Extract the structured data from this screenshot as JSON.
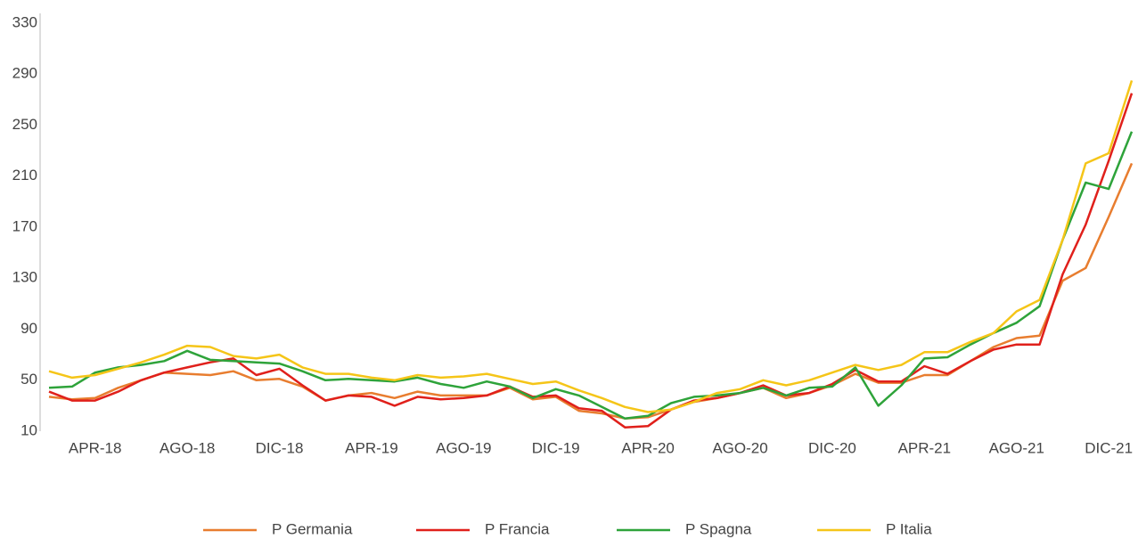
{
  "chart_data": {
    "type": "line",
    "categories": [
      null,
      null,
      "APR-18",
      null,
      null,
      null,
      "AGO-18",
      null,
      null,
      null,
      "DIC-18",
      null,
      null,
      null,
      "APR-19",
      null,
      null,
      null,
      "AGO-19",
      null,
      null,
      null,
      "DIC-19",
      null,
      null,
      null,
      "APR-20",
      null,
      null,
      null,
      "AGO-20",
      null,
      null,
      null,
      "DIC-20",
      null,
      null,
      null,
      "APR-21",
      null,
      null,
      null,
      "AGO-21",
      null,
      null,
      null,
      "DIC-21",
      null
    ],
    "series": [
      {
        "name": "P Germania",
        "color": "#e87d2f",
        "values": [
          37,
          35,
          36,
          44,
          50,
          56,
          55,
          54,
          57,
          50,
          51,
          45,
          34,
          38,
          40,
          36,
          41,
          38,
          38,
          38,
          44,
          35,
          37,
          26,
          24,
          20,
          21,
          27,
          33,
          36,
          40,
          44,
          36,
          40,
          46,
          55,
          48,
          48,
          54,
          54,
          65,
          76,
          83,
          85,
          128,
          138,
          178,
          220
        ]
      },
      {
        "name": "P Francia",
        "color": "#e0201b",
        "values": [
          41,
          34,
          34,
          41,
          50,
          56,
          60,
          64,
          67,
          54,
          59,
          46,
          34,
          38,
          37,
          30,
          37,
          35,
          36,
          38,
          45,
          37,
          38,
          28,
          26,
          13,
          14,
          27,
          34,
          36,
          40,
          46,
          38,
          40,
          47,
          58,
          49,
          49,
          61,
          55,
          65,
          74,
          78,
          78,
          133,
          172,
          222,
          275
        ]
      },
      {
        "name": "P Spagna",
        "color": "#2ea33a",
        "values": [
          44,
          45,
          56,
          60,
          62,
          65,
          73,
          66,
          65,
          64,
          63,
          57,
          50,
          51,
          50,
          49,
          52,
          47,
          44,
          49,
          45,
          36,
          43,
          38,
          29,
          20,
          22,
          32,
          37,
          38,
          40,
          44,
          38,
          44,
          45,
          60,
          30,
          46,
          67,
          68,
          78,
          87,
          95,
          108,
          160,
          205,
          200,
          245
        ]
      },
      {
        "name": "P Italia",
        "color": "#f5c518",
        "values": [
          57,
          52,
          54,
          59,
          64,
          70,
          77,
          76,
          69,
          67,
          70,
          60,
          55,
          55,
          52,
          50,
          54,
          52,
          53,
          55,
          51,
          47,
          49,
          42,
          36,
          29,
          25,
          27,
          33,
          40,
          43,
          50,
          46,
          50,
          56,
          62,
          58,
          62,
          72,
          72,
          80,
          87,
          104,
          113,
          160,
          220,
          228,
          285
        ]
      }
    ],
    "ylim": [
      10,
      330
    ],
    "yticks": [
      10,
      50,
      90,
      130,
      170,
      210,
      250,
      290,
      330
    ],
    "grid": false,
    "legend": "bottom"
  }
}
